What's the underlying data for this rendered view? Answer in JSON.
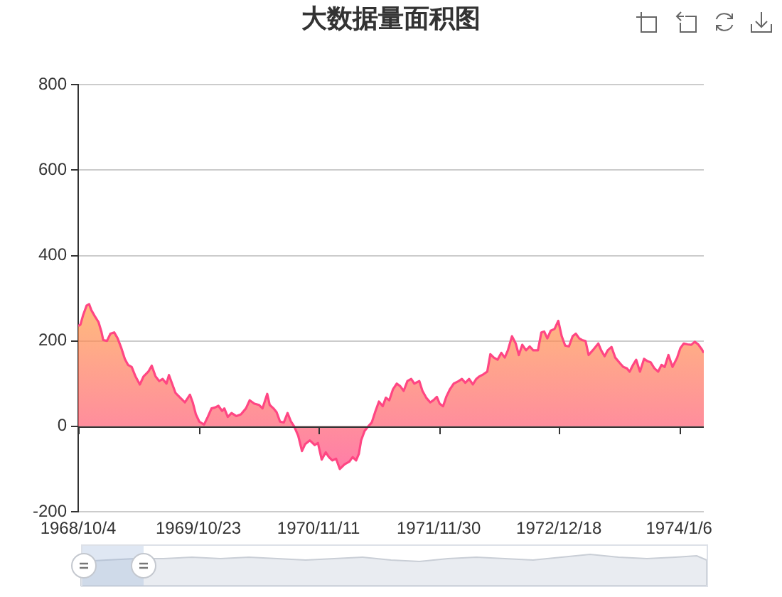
{
  "chart_data": {
    "type": "area",
    "title": "大数据量面积图",
    "color": "#ff4683",
    "marker": "none",
    "grid": "y",
    "x": [
      "1968-10-04",
      "1968-10-11",
      "1968-10-20",
      "1968-10-31",
      "1968-11-08",
      "1968-11-15",
      "1968-11-26",
      "1968-12-08",
      "1968-12-17",
      "1968-12-23",
      "1969-01-04",
      "1969-01-15",
      "1969-01-27",
      "1969-02-07",
      "1969-02-19",
      "1969-03-02",
      "1969-03-12",
      "1969-03-24",
      "1969-04-05",
      "1969-04-19",
      "1969-05-01",
      "1969-05-16",
      "1969-05-27",
      "1969-06-08",
      "1969-06-20",
      "1969-07-01",
      "1969-07-13",
      "1969-07-21",
      "1969-07-31",
      "1969-08-11",
      "1969-08-26",
      "1969-09-10",
      "1969-09-26",
      "1969-10-05",
      "1969-10-15",
      "1969-10-26",
      "1969-11-10",
      "1969-11-22",
      "1969-12-04",
      "1969-12-15",
      "1969-12-26",
      "1970-01-07",
      "1970-01-14",
      "1970-01-25",
      "1970-02-06",
      "1970-02-21",
      "1970-03-08",
      "1970-03-24",
      "1970-04-05",
      "1970-04-20",
      "1970-05-05",
      "1970-05-16",
      "1970-05-31",
      "1970-06-08",
      "1970-06-20",
      "1970-06-30",
      "1970-07-11",
      "1970-07-23",
      "1970-08-04",
      "1970-08-15",
      "1970-08-25",
      "1970-09-07",
      "1970-09-19",
      "1970-09-29",
      "1970-10-14",
      "1970-10-30",
      "1970-11-09",
      "1970-11-21",
      "1970-12-04",
      "1970-12-14",
      "1970-12-25",
      "1971-01-06",
      "1971-01-18",
      "1971-02-02",
      "1971-02-17",
      "1971-02-28",
      "1971-03-11",
      "1971-03-20",
      "1971-03-27",
      "1971-04-07",
      "1971-04-19",
      "1971-04-30",
      "1971-05-12",
      "1971-05-23",
      "1971-06-04",
      "1971-06-14",
      "1971-06-25",
      "1971-07-07",
      "1971-07-19",
      "1971-07-30",
      "1971-08-10",
      "1971-08-22",
      "1971-09-03",
      "1971-09-13",
      "1971-09-29",
      "1971-10-09",
      "1971-10-21",
      "1971-11-03",
      "1971-11-13",
      "1971-11-24",
      "1971-12-03",
      "1971-12-14",
      "1971-12-24",
      "1972-01-05",
      "1972-01-17",
      "1972-02-02",
      "1972-02-12",
      "1972-02-23",
      "1972-03-06",
      "1972-03-18",
      "1972-03-29",
      "1972-04-08",
      "1972-04-21",
      "1972-05-03",
      "1972-05-13",
      "1972-05-24",
      "1972-06-05",
      "1972-06-17",
      "1972-06-28",
      "1972-07-08",
      "1972-07-21",
      "1972-08-02",
      "1972-08-12",
      "1972-08-23",
      "1972-09-04",
      "1972-09-16",
      "1972-09-27",
      "1972-10-12",
      "1972-10-23",
      "1972-11-01",
      "1972-11-11",
      "1972-11-22",
      "1972-12-04",
      "1972-12-16",
      "1972-12-27",
      "1973-01-07",
      "1973-01-19",
      "1973-01-31",
      "1973-02-10",
      "1973-02-21",
      "1973-03-02",
      "1973-03-13",
      "1973-03-23",
      "1973-04-05",
      "1973-04-23",
      "1973-05-02",
      "1973-05-13",
      "1973-05-23",
      "1973-06-04",
      "1973-06-16",
      "1973-07-02",
      "1973-07-12",
      "1973-07-23",
      "1973-08-01",
      "1973-08-12",
      "1973-08-22",
      "1973-09-03",
      "1973-09-16",
      "1973-09-26",
      "1973-10-07",
      "1973-10-19",
      "1973-10-31",
      "1973-11-11",
      "1973-11-21",
      "1973-12-03",
      "1973-12-16",
      "1973-12-31",
      "1974-01-10",
      "1974-01-21",
      "1974-02-02",
      "1974-02-14",
      "1974-02-25",
      "1974-03-08",
      "1974-03-20",
      "1974-03-26"
    ],
    "values": [
      235,
      238,
      261,
      283,
      286,
      272,
      258,
      244,
      222,
      202,
      200,
      217,
      220,
      206,
      183,
      158,
      144,
      139,
      117,
      98,
      117,
      128,
      142,
      117,
      106,
      111,
      100,
      120,
      100,
      78,
      67,
      56,
      74,
      56,
      28,
      11,
      4,
      22,
      42,
      44,
      48,
      36,
      42,
      22,
      31,
      24,
      28,
      42,
      61,
      53,
      50,
      42,
      76,
      50,
      42,
      33,
      11,
      9,
      31,
      11,
      0,
      -22,
      -58,
      -42,
      -33,
      -44,
      -39,
      -78,
      -61,
      -72,
      -80,
      -76,
      -100,
      -89,
      -83,
      -72,
      -80,
      -64,
      -33,
      -11,
      0,
      9,
      36,
      58,
      47,
      67,
      61,
      87,
      100,
      94,
      83,
      106,
      111,
      100,
      106,
      83,
      67,
      56,
      61,
      69,
      53,
      47,
      69,
      87,
      100,
      106,
      111,
      102,
      111,
      98,
      111,
      117,
      122,
      128,
      169,
      161,
      156,
      172,
      161,
      178,
      211,
      194,
      167,
      191,
      178,
      187,
      178,
      178,
      220,
      222,
      206,
      224,
      228,
      247,
      211,
      189,
      187,
      211,
      217,
      206,
      202,
      200,
      167,
      178,
      194,
      178,
      164,
      178,
      186,
      161,
      147,
      139,
      136,
      128,
      144,
      156,
      128,
      158,
      153,
      150,
      136,
      128,
      144,
      139,
      167,
      139,
      161,
      183,
      194,
      192,
      191,
      198,
      192,
      180,
      172
    ],
    "xlim": [
      "1968-10-04",
      "1974-03-26"
    ],
    "xticks": [
      {
        "value": "1968-10-04",
        "label": "1968/10/4"
      },
      {
        "value": "1969-10-23",
        "label": "1969/10/23"
      },
      {
        "value": "1970-11-11",
        "label": "1970/11/11"
      },
      {
        "value": "1971-11-30",
        "label": "1971/11/30"
      },
      {
        "value": "1972-12-18",
        "label": "1972/12/18"
      },
      {
        "value": "1974-01-06",
        "label": "1974/1/6"
      }
    ],
    "ylim": [
      -200,
      800
    ],
    "yticks": [
      -200,
      0,
      200,
      400,
      600,
      800
    ]
  }
}
